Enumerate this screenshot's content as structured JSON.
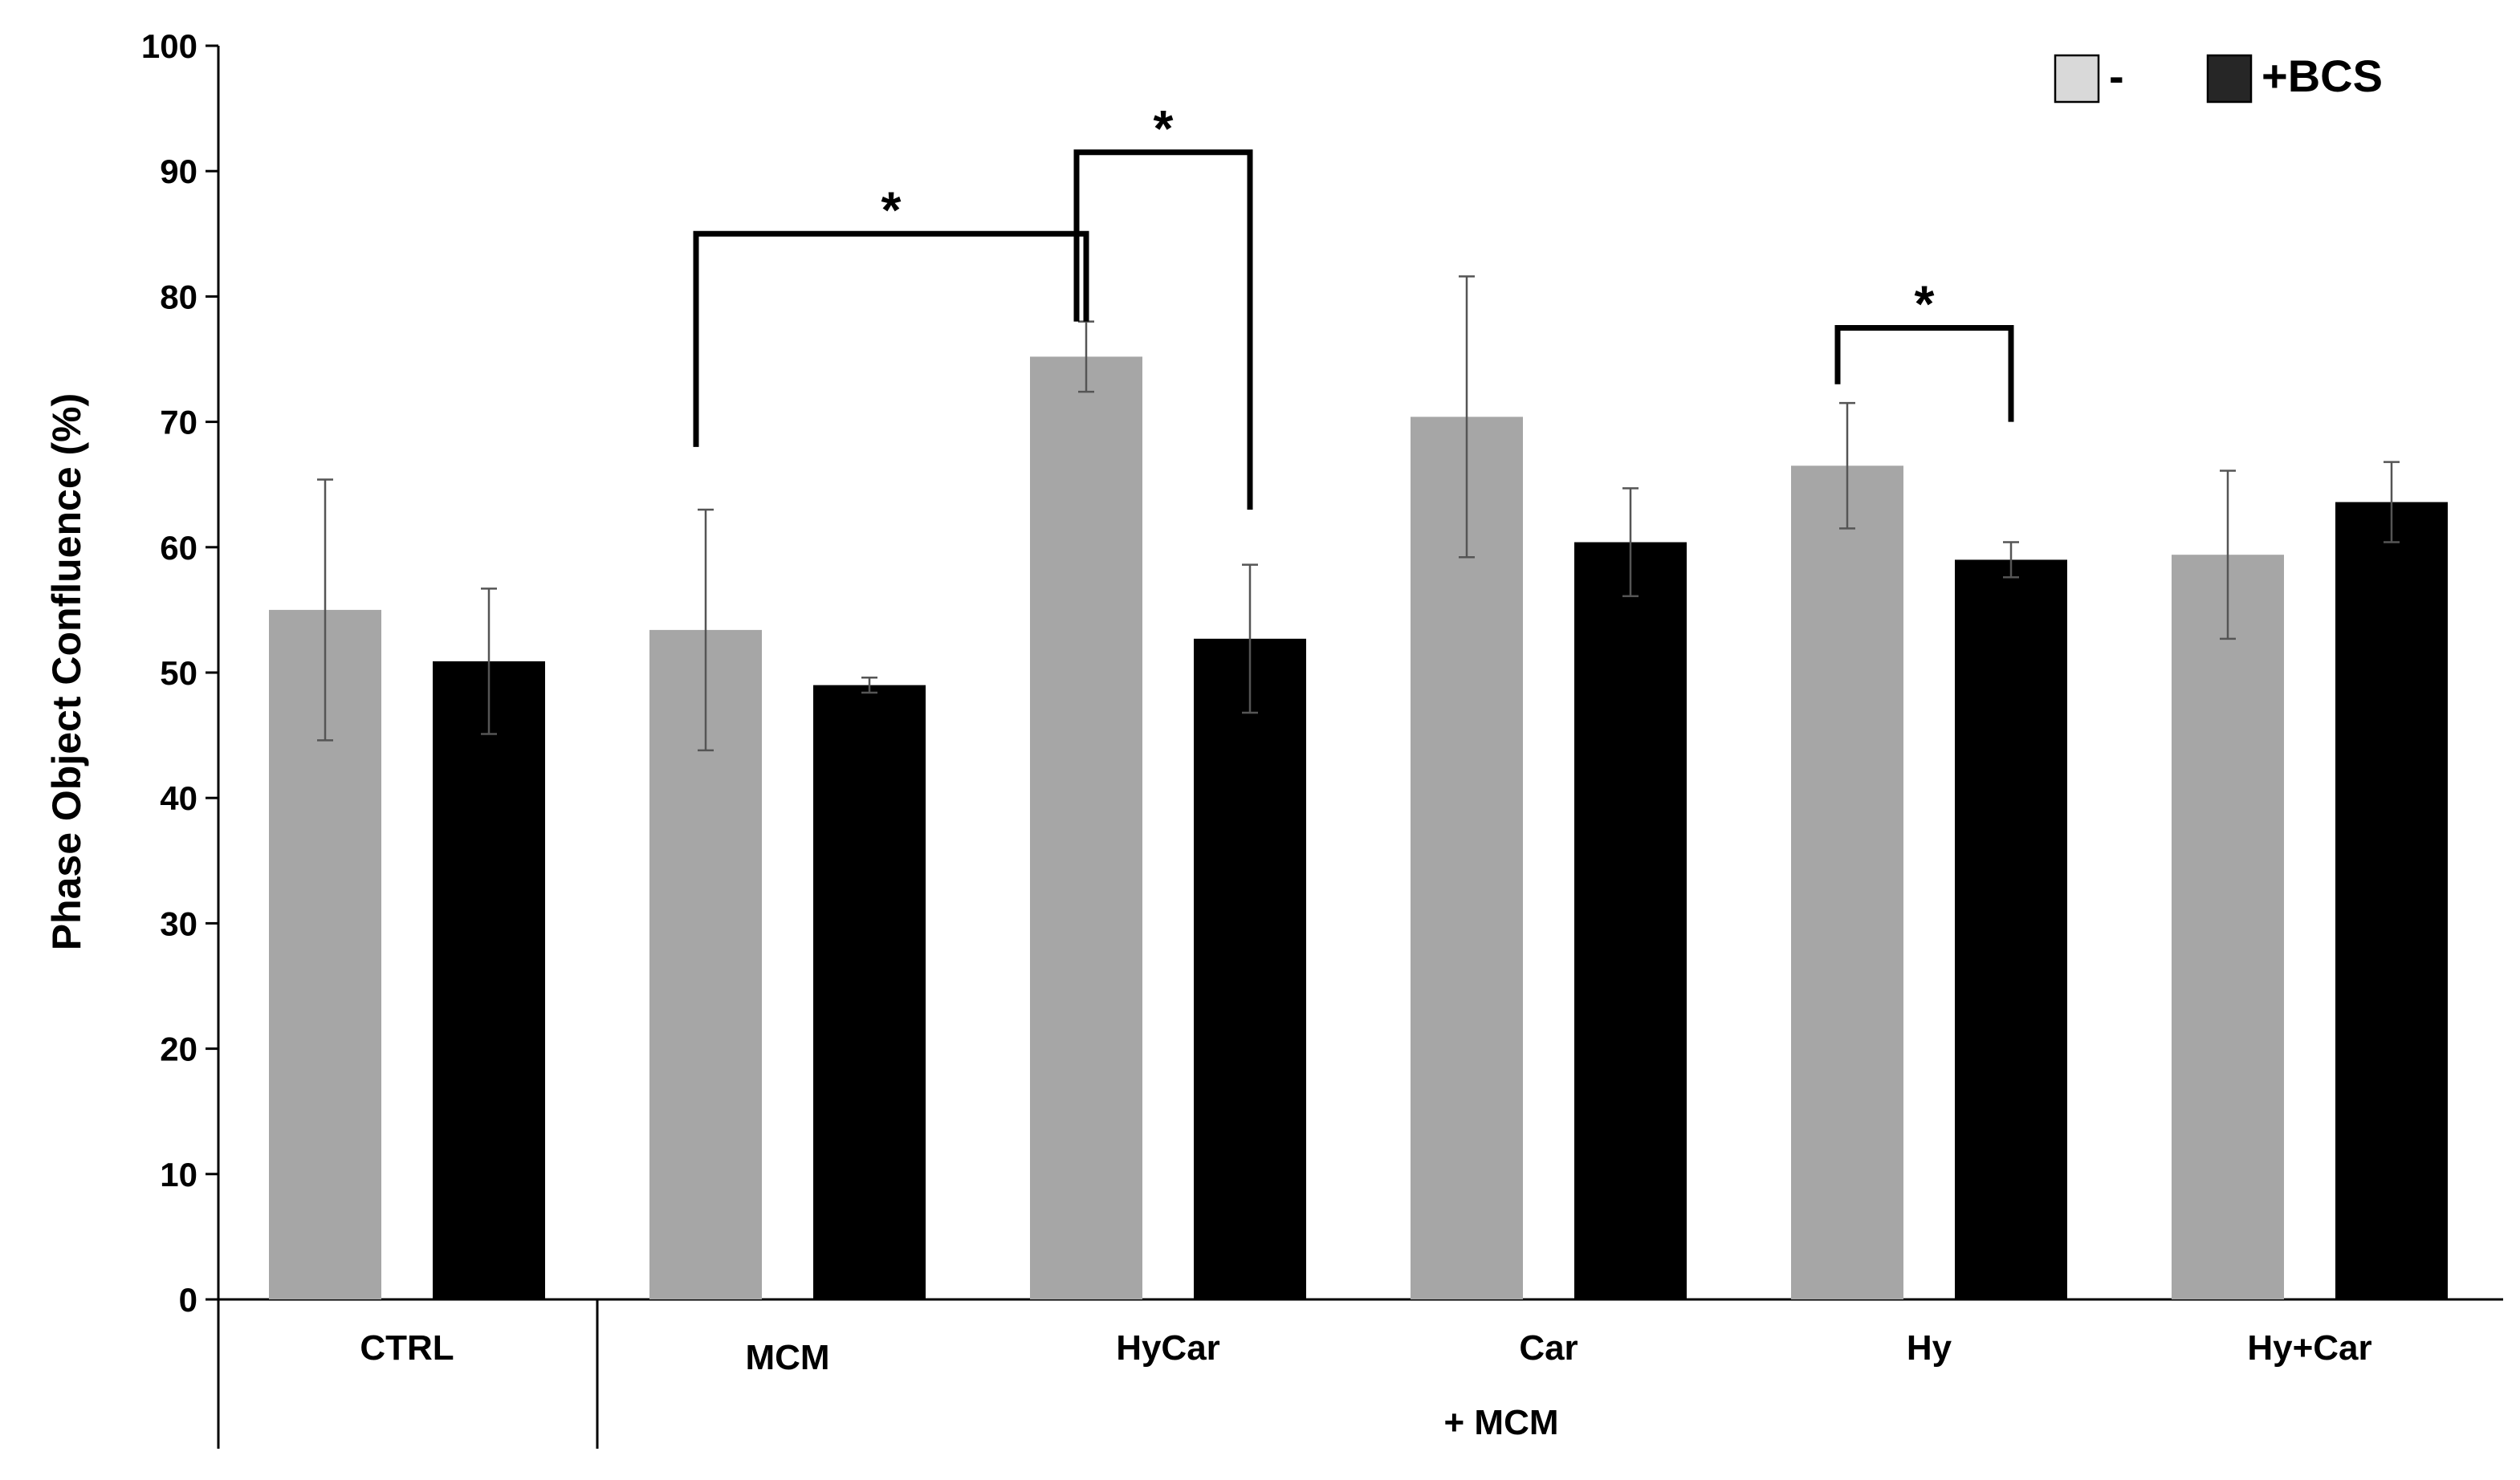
{
  "chart_data": {
    "type": "bar",
    "title": "",
    "ylabel": "Phase Object Confluence (%)",
    "xlabel": "",
    "group_label": "+ MCM",
    "ylim": [
      0,
      100
    ],
    "ytick_step": 10,
    "grid": false,
    "legend_position": "top-right",
    "categories": [
      "CTRL",
      "MCM",
      "HyCar",
      "Car",
      "Hy",
      "Hy+Car"
    ],
    "series": [
      {
        "name": "-",
        "color": "#a6a6a6",
        "legend_color": "#d9d9d9",
        "values": [
          55.0,
          53.4,
          75.2,
          70.4,
          66.5,
          59.4
        ],
        "errors": [
          10.4,
          9.6,
          2.8,
          11.2,
          5.0,
          6.7
        ]
      },
      {
        "name": "+BCS",
        "color": "#000000",
        "legend_color": "#262626",
        "values": [
          50.9,
          49.0,
          52.7,
          60.4,
          59.0,
          63.6
        ],
        "errors": [
          5.8,
          0.6,
          5.9,
          4.3,
          1.4,
          3.2
        ]
      }
    ],
    "significance": [
      {
        "label": "*",
        "from": {
          "category": 1,
          "series": 0
        },
        "to": {
          "category": 2,
          "series": 0
        },
        "level": 85,
        "from_end": 68,
        "to_end": 78
      },
      {
        "label": "*",
        "from": {
          "category": 2,
          "series": 0
        },
        "to": {
          "category": 2,
          "series": 1
        },
        "level": 91.5,
        "from_end": 78,
        "to_end": 63
      },
      {
        "label": "*",
        "from": {
          "category": 4,
          "series": 0
        },
        "to": {
          "category": 4,
          "series": 1
        },
        "level": 77.5,
        "from_end": 73,
        "to_end": 70
      }
    ]
  }
}
